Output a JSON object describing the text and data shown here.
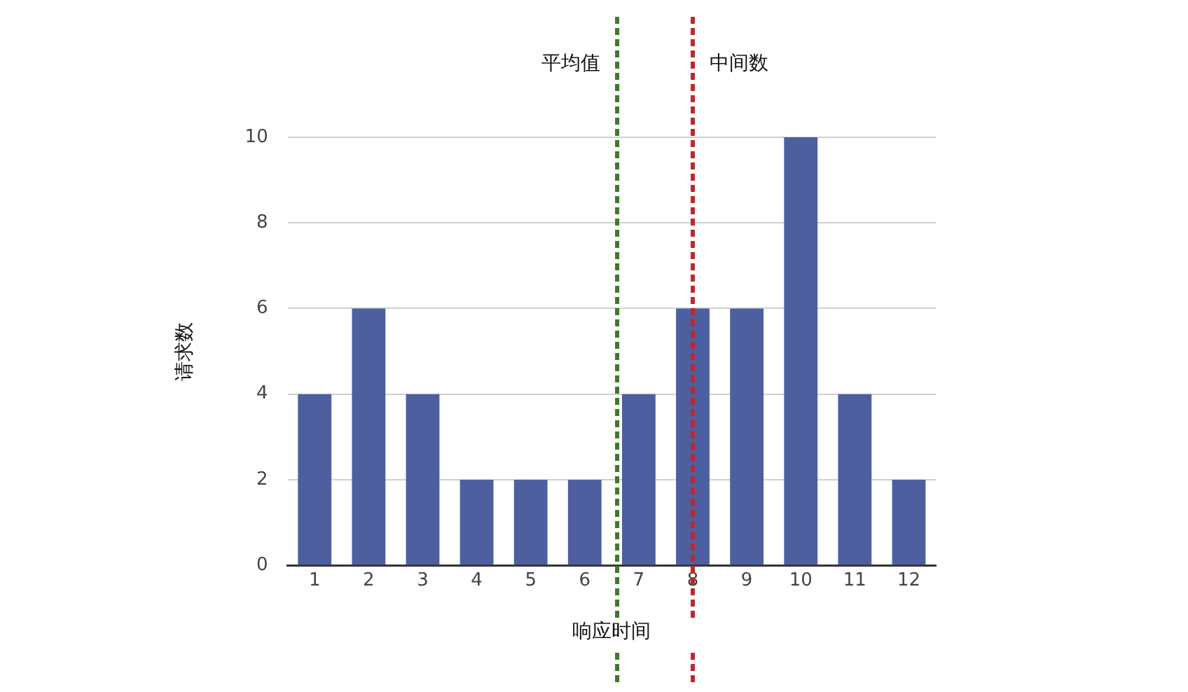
{
  "chart_data": {
    "type": "bar",
    "xlabel": "响应时间",
    "ylabel": "请求数",
    "x": [
      1,
      2,
      3,
      4,
      5,
      6,
      7,
      8,
      9,
      10,
      11,
      12
    ],
    "values": [
      4,
      6,
      4,
      2,
      2,
      2,
      4,
      6,
      6,
      10,
      4,
      2
    ],
    "color": "#4e5f9f",
    "xlim": [
      0.5,
      12.5
    ],
    "xticks": [
      1,
      2,
      3,
      4,
      5,
      6,
      7,
      8,
      9,
      10,
      11,
      12
    ],
    "ylim": [
      0,
      10
    ],
    "yticks": [
      0,
      2,
      4,
      6,
      8,
      10
    ],
    "grid": "y",
    "ref_lines": [
      {
        "axis": "x",
        "value": 6.6,
        "label": "平均值",
        "color": "#3d7a2a",
        "line_style": "dashed"
      },
      {
        "axis": "x",
        "value": 8,
        "label": "中间数",
        "color": "#c0272d",
        "line_style": "dashed"
      }
    ]
  }
}
